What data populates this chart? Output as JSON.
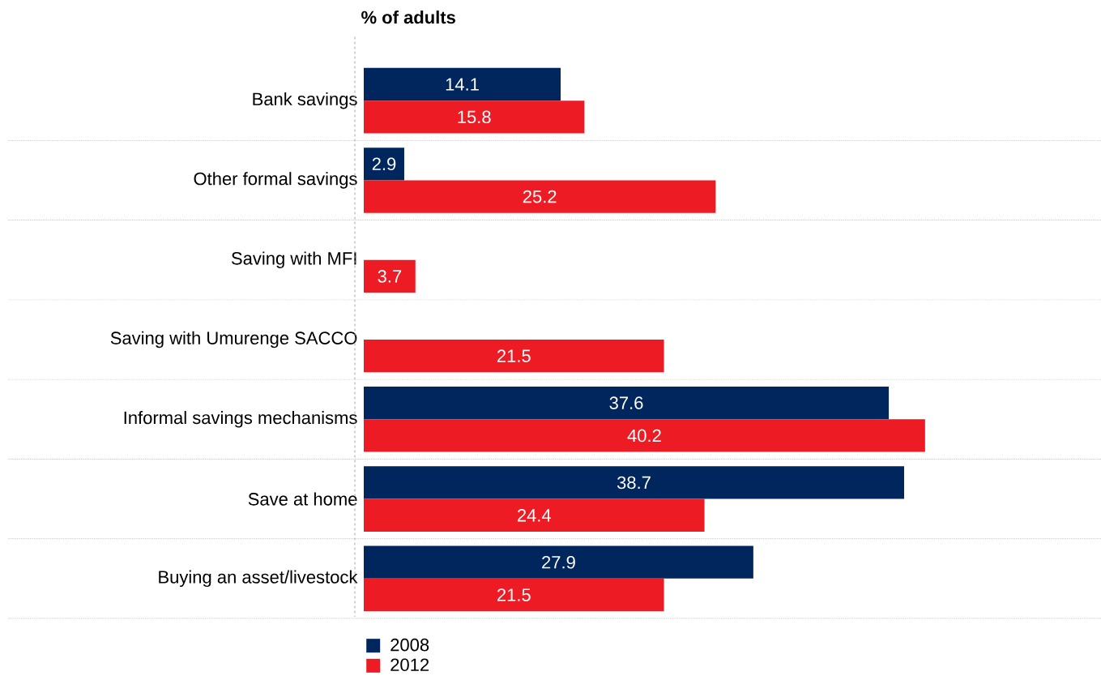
{
  "chart_data": {
    "type": "bar",
    "orientation": "horizontal",
    "title": "% of adults",
    "categories": [
      "Bank savings",
      "Other formal savings",
      "Saving with MFI",
      "Saving with Umurenge SACCO",
      "Informal savings mechanisms",
      "Save at home",
      "Buying an asset/livestock"
    ],
    "series": [
      {
        "name": "2008",
        "color": "#00275d",
        "values": [
          14.1,
          2.9,
          null,
          null,
          37.6,
          38.7,
          27.9
        ]
      },
      {
        "name": "2012",
        "color": "#ed1c24",
        "values": [
          15.8,
          25.2,
          3.7,
          21.5,
          40.2,
          24.4,
          21.5
        ]
      }
    ],
    "xlim": [
      0,
      52.8
    ],
    "data_labels": true,
    "grid": true,
    "legend": "bottom"
  }
}
